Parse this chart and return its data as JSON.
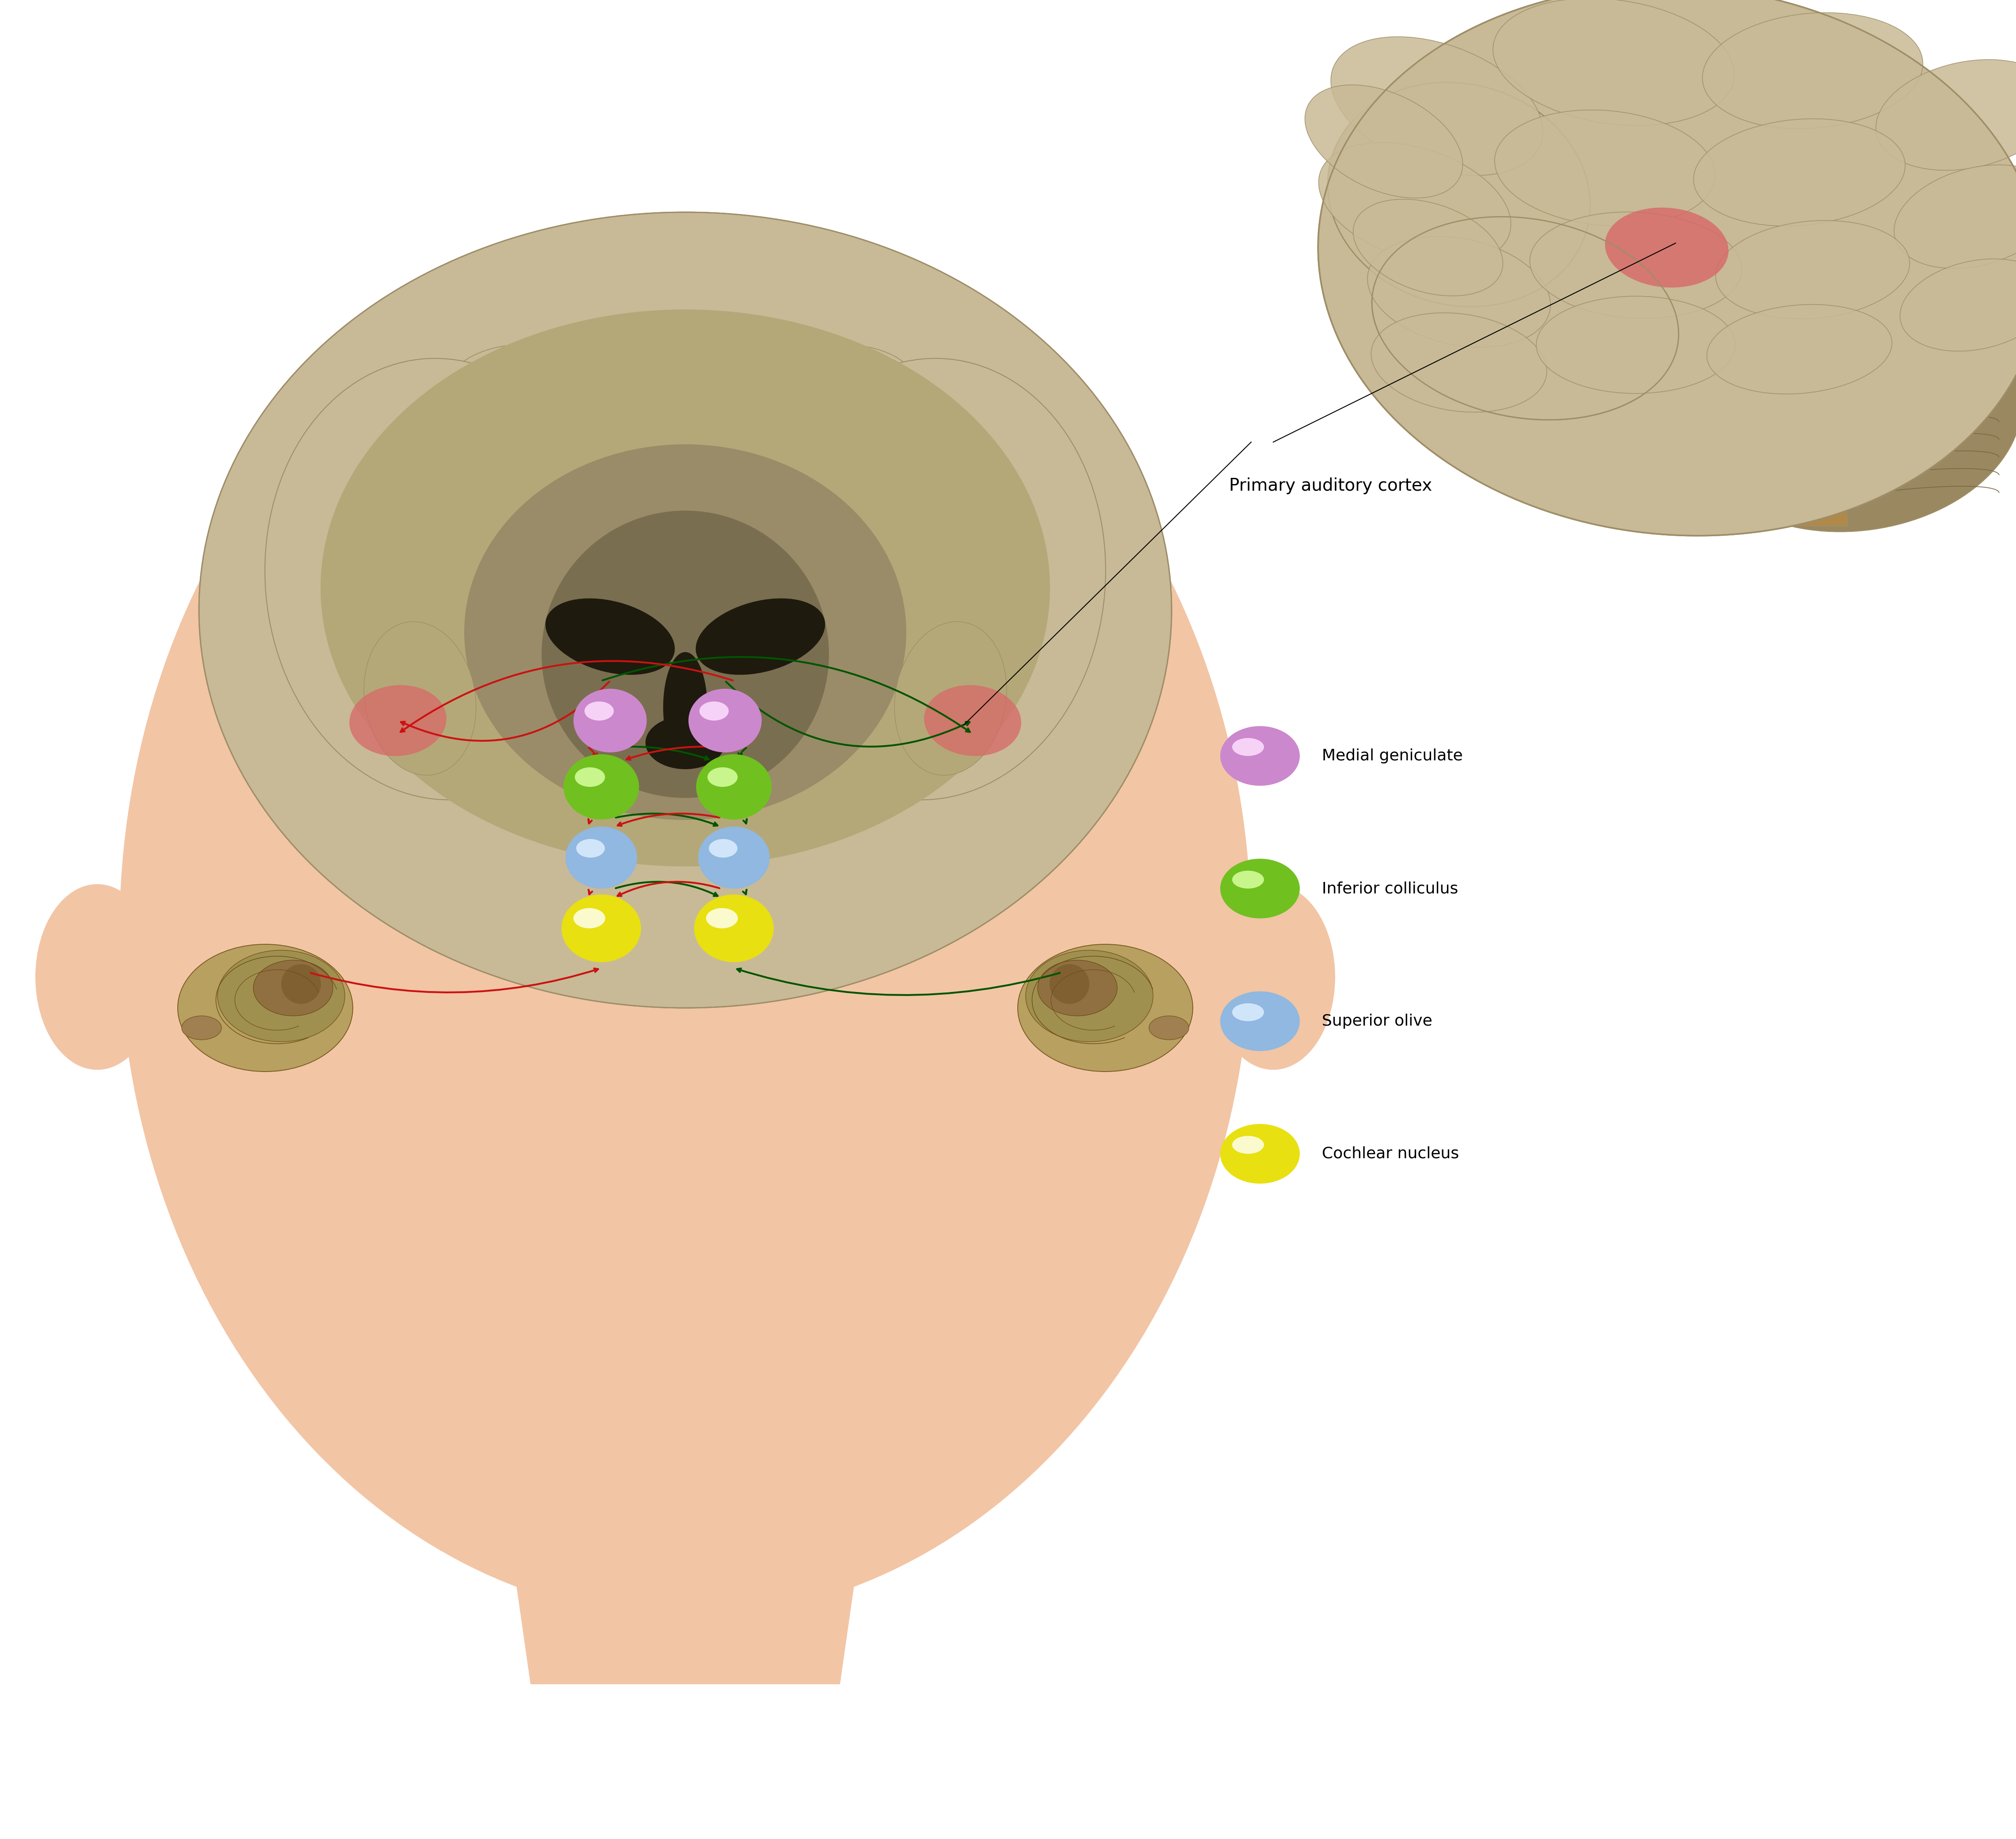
{
  "bg_color": "#ffffff",
  "skin_color": "#f2c5a5",
  "skin_shadow": "#e8a882",
  "brain_tan": "#c8ba96",
  "brain_tan_dark": "#b5a878",
  "brain_brown": "#9e8e68",
  "brain_dark_shadow": "#8a7a58",
  "brain_very_dark": "#6a5e40",
  "ventricle_color": "#1e1a0e",
  "brainstem_color": "#7a6840",
  "cerebellum_color": "#9a8860",
  "cerebellum_stripe": "#7a6845",
  "pink_aud_cortex": "#d86868",
  "pathway_red": "#cc1111",
  "pathway_green": "#005500",
  "node_yellow_outer": "#e8e010",
  "node_yellow_inner": "#fffff0",
  "node_blue_outer": "#90b8e0",
  "node_blue_inner": "#ddeeff",
  "node_green_outer": "#70c020",
  "node_green_inner": "#d8ffa0",
  "node_pink_outer": "#cc88cc",
  "node_pink_inner": "#ffe0ff",
  "legend_items": [
    {
      "color_outer": "#cc88cc",
      "color_inner": "#ffe0ff",
      "label": "Medial geniculate"
    },
    {
      "color_outer": "#70c020",
      "color_inner": "#d8ffa0",
      "label": "Inferior colliculus"
    },
    {
      "color_outer": "#90b8e0",
      "color_inner": "#ddeeff",
      "label": "Superior olive"
    },
    {
      "color_outer": "#e8e010",
      "color_inner": "#fffff0",
      "label": "Cochlear nucleus"
    }
  ],
  "label_primary_auditory": "Primary auditory cortex"
}
